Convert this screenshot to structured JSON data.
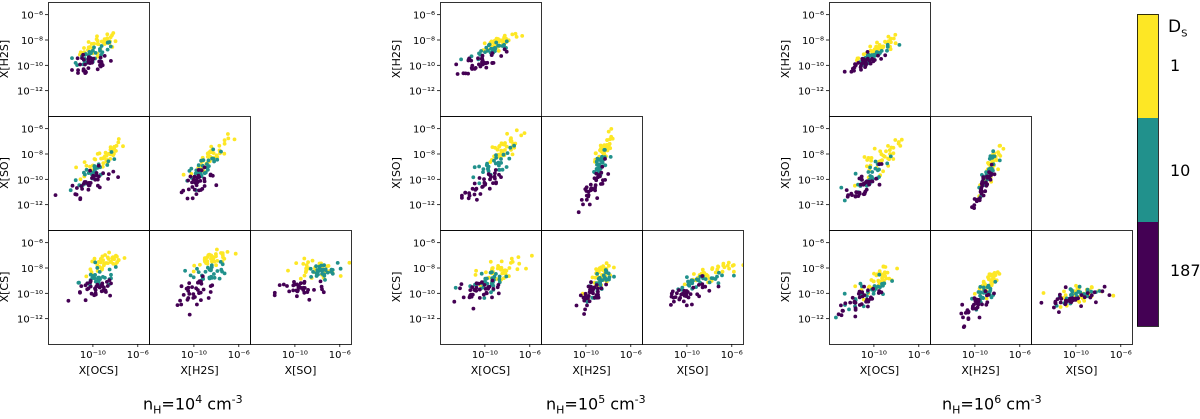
{
  "chart_data": {
    "type": "scatter",
    "description_groups": [
      {
        "name": "nH=1e4",
        "caption": {
          "base": "n",
          "sub": "H",
          "mid": "=10",
          "sup": "4",
          "unit": " cm",
          "unit_sup": "-3"
        }
      },
      {
        "name": "nH=1e5",
        "caption": {
          "base": "n",
          "sub": "H",
          "mid": "=10",
          "sup": "5",
          "unit": " cm",
          "unit_sup": "-3"
        }
      },
      {
        "name": "nH=1e6",
        "caption": {
          "base": "n",
          "sub": "H",
          "mid": "=10",
          "sup": "6",
          "unit": " cm",
          "unit_sup": "-3"
        }
      }
    ],
    "x_axis_labels": [
      "X[OCS]",
      "X[H2S]",
      "X[SO]"
    ],
    "y_axis_labels": [
      "X[H2S]",
      "X[SO]",
      "X[CS]"
    ],
    "x_ticks": [
      "10⁻¹⁰",
      "10⁻⁶"
    ],
    "x_tick_values": [
      -10,
      -6
    ],
    "y_ticks": [
      "10⁻⁶",
      "10⁻⁸",
      "10⁻¹⁰",
      "10⁻¹²"
    ],
    "y_tick_values": [
      -6,
      -8,
      -10,
      -12
    ],
    "xlim_log10": [
      -14,
      -5
    ],
    "ylim_log10": [
      -14,
      -5
    ],
    "colorbar": {
      "title": "D",
      "title_sub": "S",
      "levels": [
        {
          "label": "1",
          "color": "#fde725"
        },
        {
          "label": "10",
          "color": "#21918c"
        },
        {
          "label": "187",
          "color": "#440154"
        }
      ]
    },
    "series_note": "Three point groups per panel colored by D_S (1, 10, 187); points are approximate clouds read off the figure.",
    "panels": [
      {
        "group": 0,
        "row": 0,
        "col": 0,
        "xvar": "X[OCS]",
        "yvar": "X[H2S]",
        "clouds": [
          {
            "level": 0,
            "cx": -9.3,
            "cy": -8.3,
            "sx": 0.9,
            "sy": 0.7,
            "slope": 0.6,
            "n": 40
          },
          {
            "level": 1,
            "cx": -10.0,
            "cy": -9.2,
            "sx": 0.9,
            "sy": 0.7,
            "slope": 0.6,
            "n": 30
          },
          {
            "level": 2,
            "cx": -10.3,
            "cy": -10.0,
            "sx": 0.9,
            "sy": 0.8,
            "slope": 0.5,
            "n": 35
          }
        ]
      },
      {
        "group": 0,
        "row": 1,
        "col": 0,
        "xvar": "X[OCS]",
        "yvar": "X[SO]",
        "clouds": [
          {
            "level": 0,
            "cx": -9.2,
            "cy": -8.3,
            "sx": 1.0,
            "sy": 0.9,
            "slope": 0.9,
            "n": 40
          },
          {
            "level": 1,
            "cx": -9.8,
            "cy": -9.3,
            "sx": 1.0,
            "sy": 0.9,
            "slope": 0.9,
            "n": 30
          },
          {
            "level": 2,
            "cx": -10.2,
            "cy": -10.2,
            "sx": 0.9,
            "sy": 0.8,
            "slope": 0.8,
            "n": 35
          }
        ]
      },
      {
        "group": 0,
        "row": 1,
        "col": 1,
        "xvar": "X[H2S]",
        "yvar": "X[SO]",
        "clouds": [
          {
            "level": 0,
            "cx": -8.6,
            "cy": -8.2,
            "sx": 0.8,
            "sy": 0.8,
            "slope": 1.1,
            "n": 40
          },
          {
            "level": 1,
            "cx": -9.0,
            "cy": -9.0,
            "sx": 0.8,
            "sy": 0.8,
            "slope": 1.0,
            "n": 30
          },
          {
            "level": 2,
            "cx": -9.8,
            "cy": -10.3,
            "sx": 0.8,
            "sy": 0.8,
            "slope": 0.8,
            "n": 35
          }
        ]
      },
      {
        "group": 0,
        "row": 2,
        "col": 0,
        "xvar": "X[OCS]",
        "yvar": "X[CS]",
        "clouds": [
          {
            "level": 0,
            "cx": -8.8,
            "cy": -7.6,
            "sx": 0.9,
            "sy": 0.8,
            "slope": 0.3,
            "n": 40
          },
          {
            "level": 1,
            "cx": -9.4,
            "cy": -8.8,
            "sx": 0.9,
            "sy": 0.8,
            "slope": 0.3,
            "n": 30
          },
          {
            "level": 2,
            "cx": -9.8,
            "cy": -9.8,
            "sx": 0.9,
            "sy": 0.8,
            "slope": 0.3,
            "n": 35
          }
        ]
      },
      {
        "group": 0,
        "row": 2,
        "col": 1,
        "xvar": "X[H2S]",
        "yvar": "X[CS]",
        "clouds": [
          {
            "level": 0,
            "cx": -8.2,
            "cy": -7.3,
            "sx": 0.8,
            "sy": 0.6,
            "slope": 0.2,
            "n": 40
          },
          {
            "level": 1,
            "cx": -8.5,
            "cy": -8.3,
            "sx": 0.8,
            "sy": 0.7,
            "slope": 0.2,
            "n": 30
          },
          {
            "level": 2,
            "cx": -9.8,
            "cy": -9.8,
            "sx": 1.0,
            "sy": 0.9,
            "slope": 0.2,
            "n": 35
          }
        ]
      },
      {
        "group": 0,
        "row": 2,
        "col": 2,
        "xvar": "X[SO]",
        "yvar": "X[CS]",
        "clouds": [
          {
            "level": 0,
            "cx": -8.3,
            "cy": -8.1,
            "sx": 1.0,
            "sy": 0.8,
            "slope": 0.1,
            "n": 35
          },
          {
            "level": 1,
            "cx": -7.8,
            "cy": -8.3,
            "sx": 0.8,
            "sy": 0.6,
            "slope": 0.1,
            "n": 30
          },
          {
            "level": 2,
            "cx": -9.5,
            "cy": -9.7,
            "sx": 1.1,
            "sy": 1.0,
            "slope": 0.2,
            "n": 35
          }
        ]
      },
      {
        "group": 1,
        "row": 0,
        "col": 0,
        "xvar": "X[OCS]",
        "yvar": "X[H2S]",
        "clouds": [
          {
            "level": 0,
            "cx": -8.6,
            "cy": -8.1,
            "sx": 0.9,
            "sy": 0.5,
            "slope": 0.5,
            "n": 40
          },
          {
            "level": 1,
            "cx": -9.5,
            "cy": -8.8,
            "sx": 0.9,
            "sy": 0.5,
            "slope": 0.5,
            "n": 30
          },
          {
            "level": 2,
            "cx": -10.2,
            "cy": -9.6,
            "sx": 0.9,
            "sy": 0.7,
            "slope": 0.5,
            "n": 35
          }
        ]
      },
      {
        "group": 1,
        "row": 1,
        "col": 0,
        "xvar": "X[OCS]",
        "yvar": "X[SO]",
        "clouds": [
          {
            "level": 0,
            "cx": -8.6,
            "cy": -7.8,
            "sx": 0.9,
            "sy": 0.9,
            "slope": 1.0,
            "n": 40
          },
          {
            "level": 1,
            "cx": -9.4,
            "cy": -9.0,
            "sx": 0.9,
            "sy": 0.9,
            "slope": 1.0,
            "n": 30
          },
          {
            "level": 2,
            "cx": -10.3,
            "cy": -10.5,
            "sx": 0.9,
            "sy": 0.8,
            "slope": 0.9,
            "n": 35
          }
        ]
      },
      {
        "group": 1,
        "row": 1,
        "col": 1,
        "xvar": "X[H2S]",
        "yvar": "X[SO]",
        "clouds": [
          {
            "level": 0,
            "cx": -8.3,
            "cy": -7.6,
            "sx": 0.4,
            "sy": 0.9,
            "slope": 2.0,
            "n": 40
          },
          {
            "level": 1,
            "cx": -8.7,
            "cy": -8.9,
            "sx": 0.4,
            "sy": 0.9,
            "slope": 2.0,
            "n": 30
          },
          {
            "level": 2,
            "cx": -9.3,
            "cy": -10.5,
            "sx": 0.6,
            "sy": 1.0,
            "slope": 1.8,
            "n": 35
          }
        ]
      },
      {
        "group": 1,
        "row": 2,
        "col": 0,
        "xvar": "X[OCS]",
        "yvar": "X[CS]",
        "clouds": [
          {
            "level": 0,
            "cx": -8.7,
            "cy": -8.2,
            "sx": 1.1,
            "sy": 0.8,
            "slope": 0.4,
            "n": 40
          },
          {
            "level": 1,
            "cx": -9.6,
            "cy": -9.0,
            "sx": 1.0,
            "sy": 0.8,
            "slope": 0.4,
            "n": 30
          },
          {
            "level": 2,
            "cx": -10.5,
            "cy": -9.9,
            "sx": 1.0,
            "sy": 0.9,
            "slope": 0.4,
            "n": 35
          }
        ]
      },
      {
        "group": 1,
        "row": 2,
        "col": 1,
        "xvar": "X[H2S]",
        "yvar": "X[CS]",
        "clouds": [
          {
            "level": 0,
            "cx": -8.4,
            "cy": -8.4,
            "sx": 0.5,
            "sy": 0.9,
            "slope": 1.5,
            "n": 40
          },
          {
            "level": 1,
            "cx": -8.8,
            "cy": -9.2,
            "sx": 0.5,
            "sy": 0.8,
            "slope": 1.2,
            "n": 30
          },
          {
            "level": 2,
            "cx": -9.4,
            "cy": -10.0,
            "sx": 0.6,
            "sy": 0.8,
            "slope": 1.0,
            "n": 35
          }
        ]
      },
      {
        "group": 1,
        "row": 2,
        "col": 2,
        "xvar": "X[SO]",
        "yvar": "X[CS]",
        "clouds": [
          {
            "level": 0,
            "cx": -8.0,
            "cy": -8.4,
            "sx": 1.1,
            "sy": 0.6,
            "slope": 0.4,
            "n": 40
          },
          {
            "level": 1,
            "cx": -8.8,
            "cy": -9.1,
            "sx": 1.1,
            "sy": 0.6,
            "slope": 0.4,
            "n": 30
          },
          {
            "level": 2,
            "cx": -10.0,
            "cy": -10.0,
            "sx": 1.2,
            "sy": 0.8,
            "slope": 0.4,
            "n": 35
          }
        ]
      },
      {
        "group": 2,
        "row": 0,
        "col": 0,
        "xvar": "X[OCS]",
        "yvar": "X[H2S]",
        "clouds": [
          {
            "level": 0,
            "cx": -9.4,
            "cy": -8.6,
            "sx": 0.8,
            "sy": 0.4,
            "slope": 0.7,
            "n": 40
          },
          {
            "level": 1,
            "cx": -10.1,
            "cy": -9.3,
            "sx": 0.8,
            "sy": 0.4,
            "slope": 0.7,
            "n": 30
          },
          {
            "level": 2,
            "cx": -10.8,
            "cy": -9.8,
            "sx": 0.8,
            "sy": 0.6,
            "slope": 0.6,
            "n": 35
          }
        ]
      },
      {
        "group": 2,
        "row": 1,
        "col": 0,
        "xvar": "X[OCS]",
        "yvar": "X[SO]",
        "clouds": [
          {
            "level": 0,
            "cx": -9.5,
            "cy": -8.6,
            "sx": 0.9,
            "sy": 1.0,
            "slope": 1.1,
            "n": 40
          },
          {
            "level": 1,
            "cx": -10.2,
            "cy": -9.5,
            "sx": 0.9,
            "sy": 1.0,
            "slope": 1.1,
            "n": 30
          },
          {
            "level": 2,
            "cx": -11.0,
            "cy": -10.5,
            "sx": 0.8,
            "sy": 1.0,
            "slope": 1.1,
            "n": 35
          }
        ]
      },
      {
        "group": 2,
        "row": 1,
        "col": 1,
        "xvar": "X[H2S]",
        "yvar": "X[SO]",
        "clouds": [
          {
            "level": 0,
            "cx": -8.6,
            "cy": -9.1,
            "sx": 0.4,
            "sy": 1.0,
            "slope": 2.4,
            "n": 40
          },
          {
            "level": 1,
            "cx": -8.9,
            "cy": -9.6,
            "sx": 0.4,
            "sy": 1.0,
            "slope": 2.4,
            "n": 30
          },
          {
            "level": 2,
            "cx": -9.3,
            "cy": -10.8,
            "sx": 0.4,
            "sy": 0.9,
            "slope": 2.2,
            "n": 35
          }
        ]
      },
      {
        "group": 2,
        "row": 2,
        "col": 0,
        "xvar": "X[OCS]",
        "yvar": "X[CS]",
        "clouds": [
          {
            "level": 0,
            "cx": -9.6,
            "cy": -9.0,
            "sx": 0.8,
            "sy": 1.0,
            "slope": 1.0,
            "n": 40
          },
          {
            "level": 1,
            "cx": -10.4,
            "cy": -9.8,
            "sx": 0.9,
            "sy": 0.9,
            "slope": 0.8,
            "n": 30
          },
          {
            "level": 2,
            "cx": -11.3,
            "cy": -10.6,
            "sx": 1.0,
            "sy": 0.9,
            "slope": 0.7,
            "n": 35
          }
        ]
      },
      {
        "group": 2,
        "row": 2,
        "col": 1,
        "xvar": "X[H2S]",
        "yvar": "X[CS]",
        "clouds": [
          {
            "level": 0,
            "cx": -8.7,
            "cy": -9.1,
            "sx": 0.5,
            "sy": 0.9,
            "slope": 1.5,
            "n": 40
          },
          {
            "level": 1,
            "cx": -9.2,
            "cy": -10.0,
            "sx": 0.6,
            "sy": 0.9,
            "slope": 1.3,
            "n": 30
          },
          {
            "level": 2,
            "cx": -9.8,
            "cy": -10.9,
            "sx": 0.7,
            "sy": 0.9,
            "slope": 1.1,
            "n": 35
          }
        ]
      },
      {
        "group": 2,
        "row": 2,
        "col": 2,
        "xvar": "X[SO]",
        "yvar": "X[CS]",
        "clouds": [
          {
            "level": 0,
            "cx": -9.5,
            "cy": -10.0,
            "sx": 1.0,
            "sy": 0.8,
            "slope": 0.4,
            "n": 35
          },
          {
            "level": 1,
            "cx": -9.8,
            "cy": -10.1,
            "sx": 1.1,
            "sy": 0.7,
            "slope": 0.3,
            "n": 30
          },
          {
            "level": 2,
            "cx": -10.3,
            "cy": -10.4,
            "sx": 1.2,
            "sy": 0.8,
            "slope": 0.3,
            "n": 35
          }
        ]
      }
    ]
  }
}
